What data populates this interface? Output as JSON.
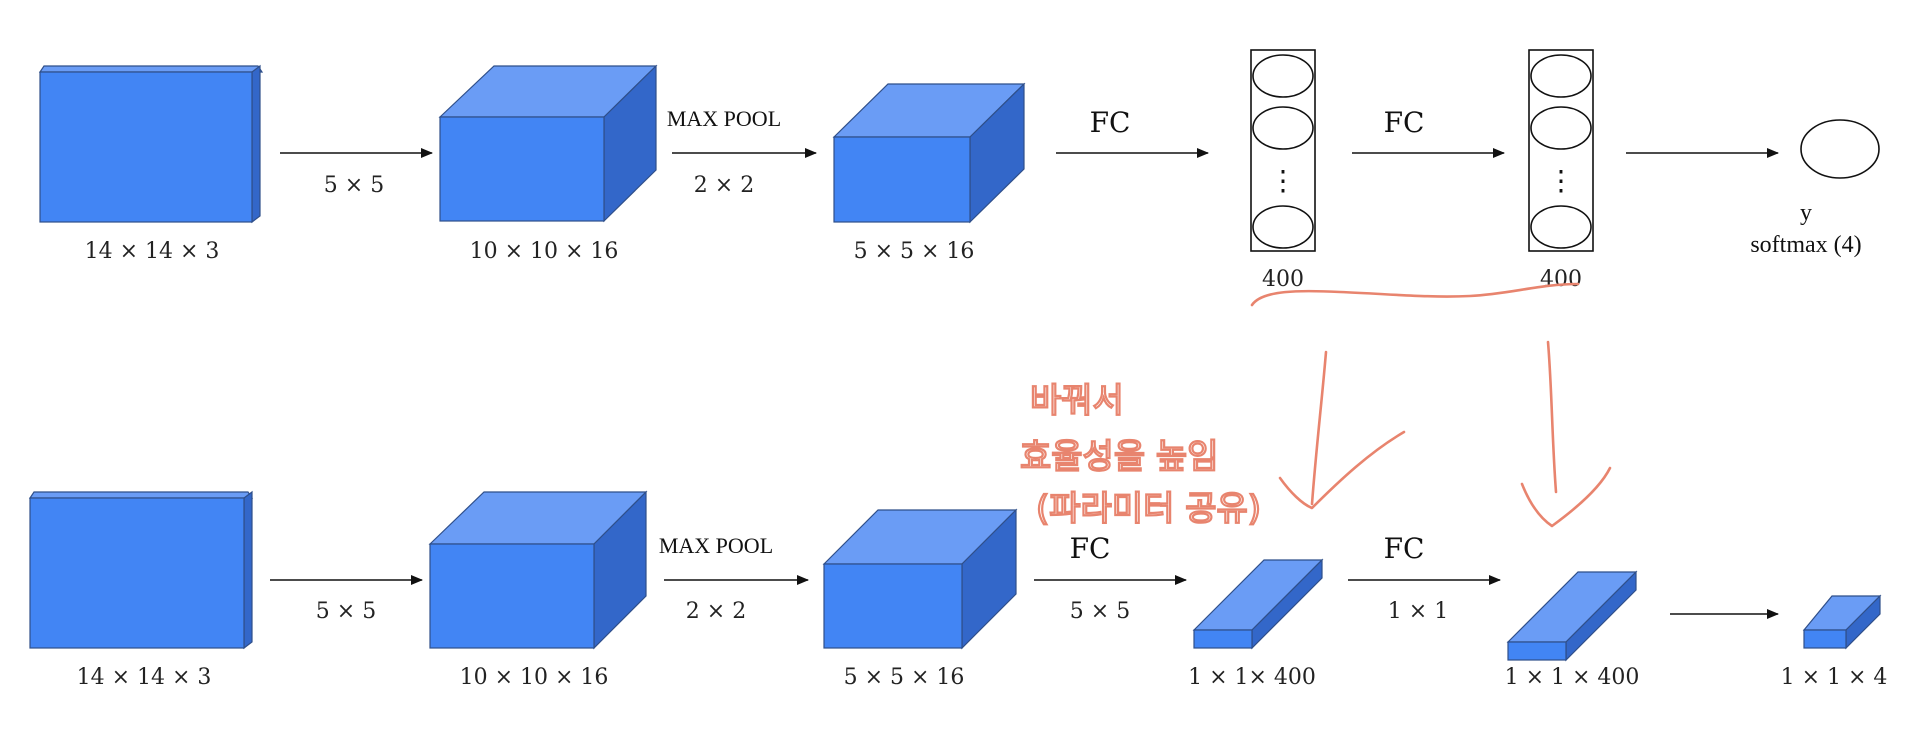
{
  "colors": {
    "cube_front": "#4285f4",
    "cube_top": "#6a9cf5",
    "cube_side": "#3367c9",
    "cube_edge": "#2f4f8a",
    "annotation": "#e8846e",
    "text": "#111111"
  },
  "top_row": {
    "input_label": "14 × 14 × 3",
    "conv_kernel_label": "5 × 5",
    "conv_output_label": "10 × 10 × 16",
    "pool_title": "MAX POOL",
    "pool_size_label": "2 × 2",
    "pool_output_label": "5 × 5 × 16",
    "fc1_label": "FC",
    "fc1_units": "400",
    "fc2_label": "FC",
    "fc2_units": "400",
    "neuron_dots": "⋮",
    "output_var": "y",
    "output_label": "softmax (4)"
  },
  "bottom_row": {
    "input_label": "14 × 14 × 3",
    "conv_kernel_label": "5 × 5",
    "conv_output_label": "10 × 10 × 16",
    "pool_title": "MAX POOL",
    "pool_size_label": "2 × 2",
    "pool_output_label": "5 × 5 × 16",
    "fc1_label": "FC",
    "fc1_kernel_label": "5 × 5",
    "fc1_output_label": "1 × 1× 400",
    "fc2_label": "FC",
    "fc2_kernel_label": "1 × 1",
    "fc2_output_label": "1 × 1 × 400",
    "final_output_label": "1 × 1 × 4"
  },
  "annotation": {
    "line1": "바꿔서",
    "line2": "효율성을 높임",
    "line3": "(파라미터 공유)"
  }
}
